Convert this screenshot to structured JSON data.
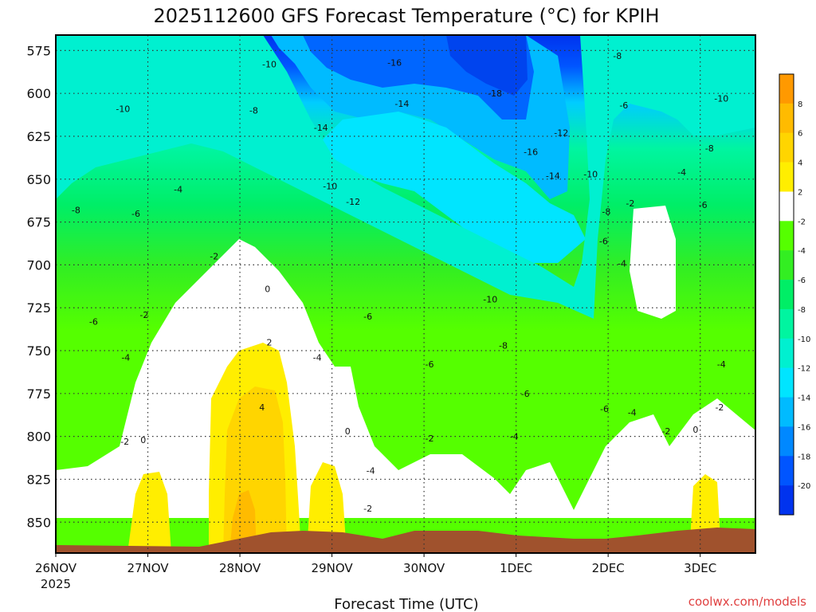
{
  "chart_data": {
    "type": "heatmap",
    "title": "2025112600 GFS Forecast Temperature (°C) for KPIH",
    "xlabel": "Forecast Time (UTC)",
    "ylabel": "",
    "credit": "coolwx.com/models",
    "x_ticks": [
      "26NOV",
      "27NOV",
      "28NOV",
      "29NOV",
      "30NOV",
      "1DEC",
      "2DEC",
      "3DEC"
    ],
    "x_year": "2025",
    "y_ticks": [
      575,
      600,
      625,
      650,
      675,
      700,
      725,
      750,
      775,
      800,
      825,
      850
    ],
    "ylim": [
      868,
      566
    ],
    "xlim": [
      0,
      7.6
    ],
    "grid": true,
    "colorbar": {
      "ticks": [
        8,
        6,
        4,
        2,
        -2,
        -4,
        -6,
        -8,
        -10,
        -12,
        -14,
        -16,
        -18,
        -20
      ],
      "colors": [
        "#ff9900",
        "#ffbb00",
        "#ffd500",
        "#ffee00",
        "#ffffff",
        "#55ff00",
        "#33ee22",
        "#00ee66",
        "#00f5a0",
        "#00f0d0",
        "#00e5ff",
        "#00bbff",
        "#0088ff",
        "#0055ff",
        "#0033ee"
      ]
    },
    "contour_labels": [
      {
        "x": 0.22,
        "p": 668,
        "v": "-8"
      },
      {
        "x": 0.41,
        "p": 733,
        "v": "-6"
      },
      {
        "x": 0.76,
        "p": 754,
        "v": "-4"
      },
      {
        "x": 0.75,
        "p": 803,
        "v": "-2"
      },
      {
        "x": 0.95,
        "p": 802,
        "v": "0"
      },
      {
        "x": 0.87,
        "p": 670,
        "v": "-6"
      },
      {
        "x": 1.33,
        "p": 656,
        "v": "-4"
      },
      {
        "x": 0.96,
        "p": 729,
        "v": "-2"
      },
      {
        "x": 0.73,
        "p": 609,
        "v": "-10"
      },
      {
        "x": 2.15,
        "p": 610,
        "v": "-8"
      },
      {
        "x": 2.32,
        "p": 583,
        "v": "-10"
      },
      {
        "x": 1.72,
        "p": 695,
        "v": "-2"
      },
      {
        "x": 2.3,
        "p": 714,
        "v": "0"
      },
      {
        "x": 2.32,
        "p": 745,
        "v": "2"
      },
      {
        "x": 2.24,
        "p": 783,
        "v": "4"
      },
      {
        "x": 2.88,
        "p": 620,
        "v": "-14"
      },
      {
        "x": 2.98,
        "p": 654,
        "v": "-10"
      },
      {
        "x": 3.23,
        "p": 663,
        "v": "-12"
      },
      {
        "x": 2.84,
        "p": 754,
        "v": "-4"
      },
      {
        "x": 3.17,
        "p": 797,
        "v": "0"
      },
      {
        "x": 3.39,
        "p": 730,
        "v": "-6"
      },
      {
        "x": 3.42,
        "p": 820,
        "v": "-4"
      },
      {
        "x": 3.39,
        "p": 842,
        "v": "-2"
      },
      {
        "x": 3.68,
        "p": 582,
        "v": "-16"
      },
      {
        "x": 3.76,
        "p": 606,
        "v": "-14"
      },
      {
        "x": 4.06,
        "p": 758,
        "v": "-6"
      },
      {
        "x": 4.06,
        "p": 801,
        "v": "-2"
      },
      {
        "x": 4.77,
        "p": 600,
        "v": "-18"
      },
      {
        "x": 5.16,
        "p": 634,
        "v": "-16"
      },
      {
        "x": 5.49,
        "p": 623,
        "v": "-12"
      },
      {
        "x": 5.4,
        "p": 648,
        "v": "-14"
      },
      {
        "x": 4.72,
        "p": 720,
        "v": "-10"
      },
      {
        "x": 4.86,
        "p": 747,
        "v": "-8"
      },
      {
        "x": 5.1,
        "p": 775,
        "v": "-6"
      },
      {
        "x": 4.98,
        "p": 800,
        "v": "-4"
      },
      {
        "x": 5.81,
        "p": 647,
        "v": "-10"
      },
      {
        "x": 6.1,
        "p": 578,
        "v": "-8"
      },
      {
        "x": 6.17,
        "p": 607,
        "v": "-6"
      },
      {
        "x": 5.98,
        "p": 669,
        "v": "-8"
      },
      {
        "x": 5.95,
        "p": 686,
        "v": "-6"
      },
      {
        "x": 6.15,
        "p": 699,
        "v": "-4"
      },
      {
        "x": 6.24,
        "p": 664,
        "v": "-2"
      },
      {
        "x": 5.96,
        "p": 784,
        "v": "-6"
      },
      {
        "x": 6.26,
        "p": 786,
        "v": "-4"
      },
      {
        "x": 6.63,
        "p": 797,
        "v": "-2"
      },
      {
        "x": 6.8,
        "p": 646,
        "v": "-4"
      },
      {
        "x": 7.1,
        "p": 632,
        "v": "-8"
      },
      {
        "x": 7.23,
        "p": 603,
        "v": "-10"
      },
      {
        "x": 7.03,
        "p": 665,
        "v": "-6"
      },
      {
        "x": 7.23,
        "p": 758,
        "v": "-4"
      },
      {
        "x": 7.21,
        "p": 783,
        "v": "-2"
      },
      {
        "x": 6.95,
        "p": 796,
        "v": "0"
      }
    ]
  }
}
